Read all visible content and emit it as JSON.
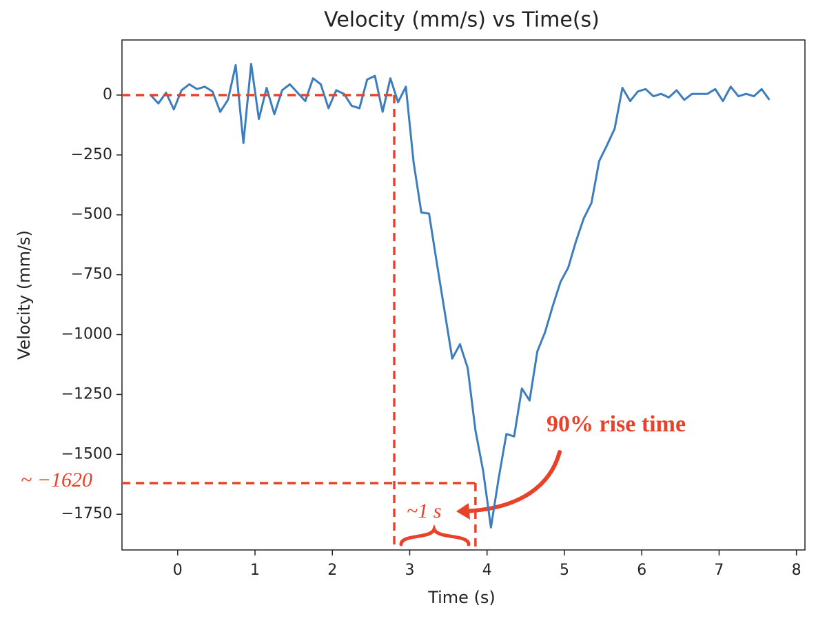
{
  "chart_data": {
    "type": "line",
    "title": "Velocity (mm/s) vs Time(s)",
    "x_label": "Time (s)",
    "y_label": "Velocity (mm/s)",
    "color": "#3b7dbd",
    "x": [
      -0.35,
      -0.25,
      -0.15,
      -0.05,
      0.05,
      0.15,
      0.25,
      0.35,
      0.45,
      0.55,
      0.65,
      0.75,
      0.85,
      0.95,
      1.05,
      1.15,
      1.25,
      1.35,
      1.45,
      1.55,
      1.65,
      1.75,
      1.85,
      1.95,
      2.05,
      2.15,
      2.25,
      2.35,
      2.45,
      2.55,
      2.65,
      2.75,
      2.85,
      2.95,
      3.05,
      3.15,
      3.25,
      3.35,
      3.45,
      3.55,
      3.65,
      3.75,
      3.85,
      3.95,
      4.05,
      4.15,
      4.25,
      4.35,
      4.45,
      4.55,
      4.65,
      4.75,
      4.85,
      4.95,
      5.05,
      5.15,
      5.25,
      5.35,
      5.45,
      5.55,
      5.65,
      5.75,
      5.85,
      5.95,
      6.05,
      6.15,
      6.25,
      6.35,
      6.45,
      6.55,
      6.65,
      6.75,
      6.85,
      6.95,
      7.05,
      7.15,
      7.25,
      7.35,
      7.45,
      7.55,
      7.65
    ],
    "values": [
      0,
      -35,
      10,
      -60,
      20,
      45,
      25,
      35,
      15,
      -70,
      -20,
      125,
      -200,
      130,
      -100,
      30,
      -80,
      20,
      45,
      10,
      -25,
      70,
      45,
      -55,
      20,
      5,
      -45,
      -55,
      65,
      80,
      -70,
      70,
      -30,
      35,
      -280,
      -490,
      -495,
      -700,
      -900,
      -1100,
      -1040,
      -1140,
      -1400,
      -1570,
      -1805,
      -1600,
      -1415,
      -1425,
      -1225,
      -1275,
      -1070,
      -990,
      -880,
      -780,
      -720,
      -610,
      -515,
      -450,
      -275,
      -210,
      -140,
      30,
      -25,
      15,
      25,
      -5,
      5,
      -10,
      20,
      -20,
      5,
      5,
      5,
      25,
      -25,
      35,
      -5,
      5,
      -5,
      25,
      -20
    ],
    "xlim": [
      -0.72,
      8.11
    ],
    "ylim": [
      -1899,
      230
    ],
    "xticks": [
      0,
      1,
      2,
      3,
      4,
      5,
      6,
      7,
      8
    ],
    "yticks": [
      0,
      {
        "value": -250,
        "label": "−250"
      },
      {
        "value": -500,
        "label": "−500"
      },
      {
        "value": -750,
        "label": "−750"
      },
      {
        "value": -1000,
        "label": "−1000"
      },
      {
        "value": -1250,
        "label": "−1250"
      },
      {
        "value": -1500,
        "label": "−1500"
      },
      {
        "value": -1750,
        "label": "−1750"
      }
    ],
    "annotation_color": "#e8432a",
    "hlines": [
      {
        "y": 0,
        "x_end": 2.8
      },
      {
        "y": -1620,
        "x_end": 3.85
      }
    ],
    "vlines": [
      {
        "x": 2.8,
        "y_end": 0
      },
      {
        "x": 3.85,
        "y_end": -1620
      }
    ],
    "annotation_texts": {
      "level": "~ −1620",
      "duration": "~1 s",
      "label": "90% rise time"
    }
  }
}
